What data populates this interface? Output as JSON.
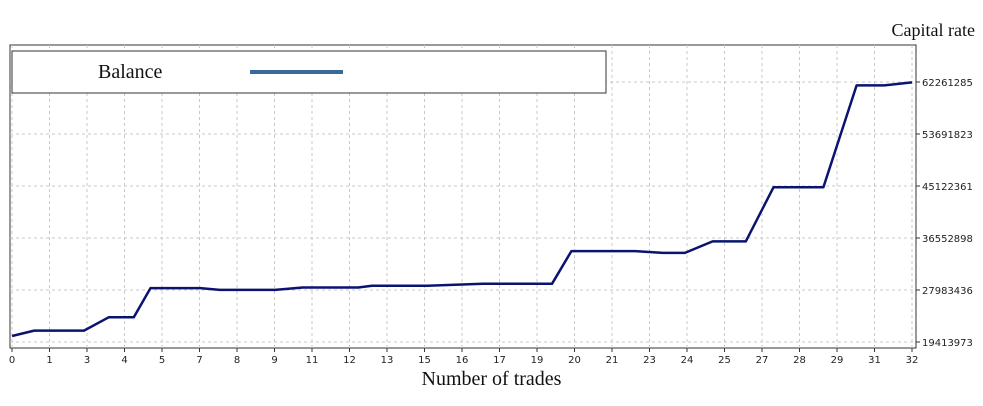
{
  "chart_data": {
    "type": "line",
    "ylabel": "Capital rate",
    "xlabel": "Number of trades",
    "legend": {
      "label": "Balance",
      "position": "top-left"
    },
    "series": [
      {
        "name": "Balance",
        "color": "#0a1470",
        "x": [
          0,
          0.8,
          2.6,
          3.5,
          4.4,
          5,
          6.8,
          7.5,
          9.5,
          10.5,
          12.5,
          13,
          15,
          17,
          19.5,
          20.2,
          22.5,
          23.5,
          24.3,
          25.3,
          26.5,
          27.5,
          29.3,
          30.5,
          31.5,
          32.5
        ],
        "y": [
          20400000,
          21300000,
          21300000,
          23500000,
          23500000,
          28300000,
          28300000,
          28000000,
          28000000,
          28400000,
          28400000,
          28700000,
          28700000,
          29000000,
          29000000,
          34400000,
          34400000,
          34100000,
          34100000,
          36000000,
          36000000,
          44900000,
          44900000,
          61700000,
          61700000,
          62200000
        ]
      }
    ],
    "xticks": [
      "0",
      "1",
      "3",
      "4",
      "5",
      "7",
      "8",
      "9",
      "11",
      "12",
      "13",
      "15",
      "16",
      "17",
      "19",
      "20",
      "21",
      "23",
      "24",
      "25",
      "27",
      "28",
      "29",
      "31",
      "32"
    ],
    "yticks": [
      "19413973",
      "27983436",
      "36552898",
      "45122361",
      "53691823",
      "62261285"
    ],
    "ylim": [
      19413973,
      62261285
    ],
    "grid": true
  }
}
